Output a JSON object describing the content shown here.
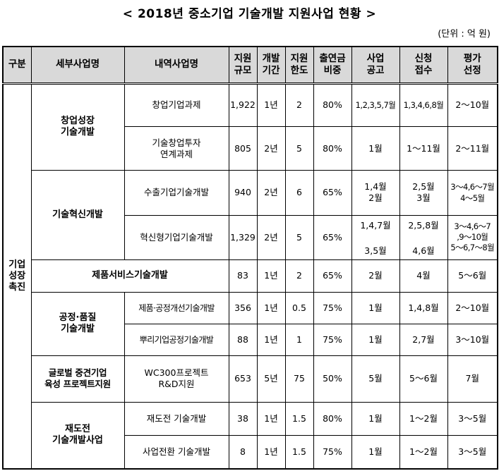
{
  "title": "< 2018년 중소기업 기술개발 지원사업 현황 >",
  "unit": "(단위 : 억 원)",
  "headers": {
    "gubun": "구분",
    "sebu": "세부사업명",
    "naeyeok": "내역사업명",
    "jiwon_gyumo": [
      "지원",
      "규모"
    ],
    "gaebal_gigan": [
      "개발",
      "기간"
    ],
    "jiwon_hando": [
      "지원",
      "한도"
    ],
    "chulyeon": [
      "출연금",
      "비중"
    ],
    "saeop_gonggo": [
      "사업",
      "공고"
    ],
    "sincheong": [
      "신청",
      "접수"
    ],
    "pyeongga": [
      "평가",
      "선정"
    ]
  },
  "category": [
    "기업",
    "성장",
    "촉진"
  ],
  "groups": {
    "g1": [
      "창업성장",
      "기술개발"
    ],
    "g2": "기술혁신개발",
    "g3": "제품서비스기술개발",
    "g4": [
      "공정·품질",
      "기술개발"
    ],
    "g5": [
      "글로벌 중견기업",
      "육성 프로젝트지원"
    ],
    "g6": [
      "재도전",
      "기술개발사업"
    ]
  },
  "rows": {
    "r1": {
      "name": "창업기업과제",
      "size": "1,922",
      "period": "1년",
      "limit": "2",
      "ratio": "80%",
      "notice": "1,2,3,5,7월",
      "apply": "1,3,4,6,8월",
      "select": "2～10월"
    },
    "r2": {
      "name": [
        "기술창업투자",
        "연계과제"
      ],
      "size": "805",
      "period": "2년",
      "limit": "5",
      "ratio": "80%",
      "notice": "1월",
      "apply": "1～11월",
      "select": "2～11월"
    },
    "r3": {
      "name": "수출기업기술개발",
      "size": "940",
      "period": "2년",
      "limit": "6",
      "ratio": "65%",
      "notice": [
        "1,4월",
        "2월"
      ],
      "apply": [
        "2,5월",
        "3월"
      ],
      "select": [
        "3～4,6～7월",
        "4～5월"
      ]
    },
    "r4": {
      "name": "혁신형기업기술개발",
      "size": "1,329",
      "period": "2년",
      "limit": "5",
      "ratio": "65%",
      "notice": [
        "1,4,7월",
        "3,5월"
      ],
      "apply": [
        "2,5,8월",
        "4,6월"
      ],
      "select": [
        "3～4,6～7",
        ",9～10월",
        "5～6,7～8월"
      ]
    },
    "r5": {
      "size": "83",
      "period": "1년",
      "limit": "2",
      "ratio": "65%",
      "notice": "2월",
      "apply": "4월",
      "select": "5～6월"
    },
    "r6": {
      "name": "제품·공정개선기술개발",
      "size": "356",
      "period": "1년",
      "limit": "0.5",
      "ratio": "75%",
      "notice": "1월",
      "apply": "1,4,8월",
      "select": "2～10월"
    },
    "r7": {
      "name": "뿌리기업공정기술개발",
      "size": "88",
      "period": "1년",
      "limit": "1",
      "ratio": "75%",
      "notice": "1월",
      "apply": "2,7월",
      "select": "3～10월"
    },
    "r8": {
      "name": [
        "WC300프로젝트",
        "R&D지원"
      ],
      "size": "653",
      "period": "5년",
      "limit": "75",
      "ratio": "50%",
      "notice": "5월",
      "apply": "5～6월",
      "select": "7월"
    },
    "r9": {
      "name": "재도전 기술개발",
      "size": "38",
      "period": "1년",
      "limit": "1.5",
      "ratio": "80%",
      "notice": "1월",
      "apply": "1～2월",
      "select": "3～5월"
    },
    "r10": {
      "name": "사업전환 기술개발",
      "size": "8",
      "period": "1년",
      "limit": "1.5",
      "ratio": "75%",
      "notice": "1월",
      "apply": "1～2월",
      "select": "3～5월"
    }
  }
}
